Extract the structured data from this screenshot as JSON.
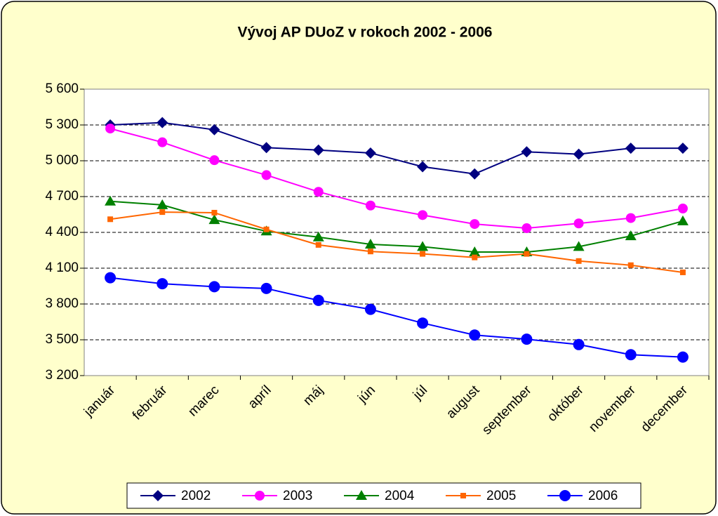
{
  "chart_data": {
    "type": "line",
    "title": "Vývoj AP DUoZ v rokoch 2002 - 2006",
    "categories": [
      "január",
      "február",
      "marec",
      "apríl",
      "máj",
      "jún",
      "júl",
      "august",
      "september",
      "október",
      "november",
      "december"
    ],
    "series": [
      {
        "name": "2002",
        "color": "#000080",
        "marker": "diamond",
        "values": [
          5300,
          5320,
          5260,
          5110,
          5090,
          5065,
          4950,
          4890,
          5075,
          5055,
          5105,
          5105
        ]
      },
      {
        "name": "2003",
        "color": "#ff00ff",
        "marker": "circle",
        "values": [
          5270,
          5155,
          5005,
          4880,
          4740,
          4625,
          4545,
          4470,
          4435,
          4475,
          4520,
          4600
        ]
      },
      {
        "name": "2004",
        "color": "#008000",
        "marker": "triangle",
        "values": [
          4660,
          4630,
          4505,
          4410,
          4360,
          4300,
          4280,
          4235,
          4235,
          4280,
          4370,
          4495
        ]
      },
      {
        "name": "2005",
        "color": "#ff6600",
        "marker": "square",
        "values": [
          4510,
          4570,
          4565,
          4425,
          4295,
          4240,
          4220,
          4190,
          4220,
          4160,
          4125,
          4065
        ]
      },
      {
        "name": "2006",
        "color": "#0000ff",
        "marker": "bigcircle",
        "values": [
          4020,
          3970,
          3945,
          3930,
          3830,
          3755,
          3640,
          3540,
          3505,
          3460,
          3375,
          3355
        ]
      }
    ],
    "ylim": [
      3200,
      5600
    ],
    "yticks": [
      {
        "value": 3200,
        "label": "3 200"
      },
      {
        "value": 3500,
        "label": "3 500"
      },
      {
        "value": 3800,
        "label": "3 800"
      },
      {
        "value": 4100,
        "label": "4 100"
      },
      {
        "value": 4400,
        "label": "4 400"
      },
      {
        "value": 4700,
        "label": "4 700"
      },
      {
        "value": 5000,
        "label": "5 000"
      },
      {
        "value": 5300,
        "label": "5 300"
      },
      {
        "value": 5600,
        "label": "5 600"
      }
    ],
    "grid": true,
    "legend": "bottom"
  }
}
